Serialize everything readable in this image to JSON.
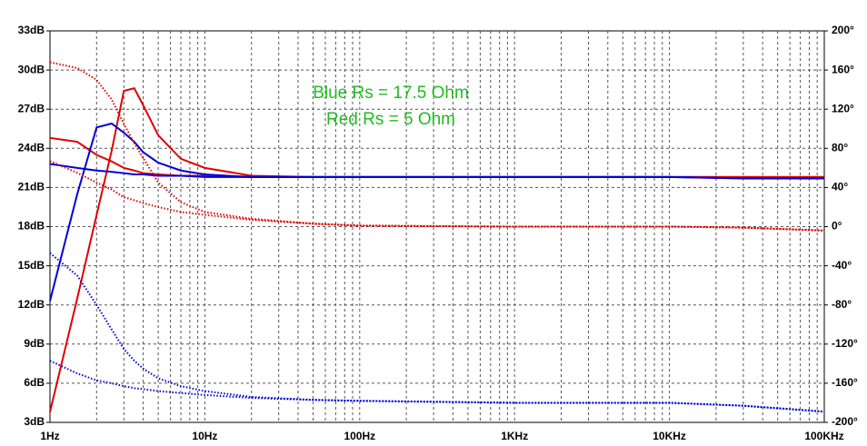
{
  "chart_data": {
    "type": "line",
    "log_x": true,
    "grid": true,
    "minor_grid": true,
    "annotations": [
      "Blue Rs = 17.5 Ohm",
      "Red Rs = 5 Ohm"
    ],
    "annotation_color": "#22bb22",
    "x": [
      1,
      1.5,
      2,
      2.5,
      3,
      3.5,
      4,
      5,
      7,
      10,
      20,
      50,
      100,
      1000,
      10000,
      30000,
      100000
    ],
    "xlim": [
      1,
      100000
    ],
    "xticks": [
      {
        "value": 1,
        "label": "1Hz"
      },
      {
        "value": 10,
        "label": "10Hz"
      },
      {
        "value": 100,
        "label": "100Hz"
      },
      {
        "value": 1000,
        "label": "1KHz"
      },
      {
        "value": 10000,
        "label": "10KHz"
      },
      {
        "value": 100000,
        "label": "100KHz"
      }
    ],
    "ylim": [
      3,
      33
    ],
    "yticks": [
      {
        "value": 3,
        "label": "3dB"
      },
      {
        "value": 6,
        "label": "6dB"
      },
      {
        "value": 9,
        "label": "9dB"
      },
      {
        "value": 12,
        "label": "12dB"
      },
      {
        "value": 15,
        "label": "15dB"
      },
      {
        "value": 18,
        "label": "18dB"
      },
      {
        "value": 21,
        "label": "21dB"
      },
      {
        "value": 24,
        "label": "24dB"
      },
      {
        "value": 27,
        "label": "27dB"
      },
      {
        "value": 30,
        "label": "30dB"
      },
      {
        "value": 33,
        "label": "33dB"
      }
    ],
    "y2lim": [
      -200,
      200
    ],
    "y2ticks": [
      {
        "value": -200,
        "label": "-200°"
      },
      {
        "value": -160,
        "label": "-160°"
      },
      {
        "value": -120,
        "label": "-120°"
      },
      {
        "value": -80,
        "label": "-80°"
      },
      {
        "value": -40,
        "label": "-40°"
      },
      {
        "value": 0,
        "label": "0°"
      },
      {
        "value": 40,
        "label": "40°"
      },
      {
        "value": 80,
        "label": "80°"
      },
      {
        "value": 120,
        "label": "120°"
      },
      {
        "value": 160,
        "label": "160°"
      },
      {
        "value": 200,
        "label": "200°"
      }
    ],
    "series": [
      {
        "color": "#e00000",
        "style": "solid",
        "values": [
          3.8,
          12.5,
          18.9,
          23.8,
          28.4,
          28.6,
          27.3,
          25,
          23.2,
          22.5,
          21.9,
          21.8,
          21.8,
          21.8,
          21.8,
          21.8,
          21.8
        ]
      },
      {
        "color": "#e00000",
        "style": "solid",
        "values": [
          24.8,
          24.5,
          23.5,
          23,
          22.5,
          22.3,
          22.1,
          22,
          21.9,
          21.9,
          21.8,
          21.8,
          21.8,
          21.8,
          21.8,
          21.8,
          21.8
        ]
      },
      {
        "color": "#0000d8",
        "style": "solid",
        "values": [
          12.3,
          20.5,
          25.6,
          25.9,
          25.2,
          24.5,
          23.7,
          22.9,
          22.3,
          22,
          21.8,
          21.8,
          21.8,
          21.8,
          21.8,
          21.7,
          21.7
        ]
      },
      {
        "color": "#0000d8",
        "style": "solid",
        "values": [
          22.8,
          22.5,
          22.3,
          22.2,
          22.1,
          22,
          22,
          21.9,
          21.9,
          21.8,
          21.8,
          21.8,
          21.8,
          21.8,
          21.8,
          21.7,
          21.7
        ]
      },
      {
        "color": "#e00000",
        "style": "dotted",
        "axis": "y2",
        "values": [
          168,
          162,
          150,
          130,
          105,
          85,
          70,
          45,
          25,
          15,
          8,
          3,
          1,
          0,
          0,
          -1,
          -4
        ]
      },
      {
        "color": "#e00000",
        "style": "dotted",
        "axis": "y2",
        "values": [
          67,
          55,
          45,
          38,
          30,
          27,
          24,
          20,
          15,
          12,
          7,
          3,
          1,
          0,
          0,
          -1,
          -4
        ]
      },
      {
        "color": "#0000d8",
        "style": "dotted",
        "axis": "y2",
        "values": [
          -27,
          -50,
          -80,
          -105,
          -125,
          -137,
          -145,
          -155,
          -163,
          -168,
          -174,
          -177,
          -178,
          -180,
          -180,
          -183,
          -189
        ]
      },
      {
        "color": "#0000d8",
        "style": "dotted",
        "axis": "y2",
        "values": [
          -137,
          -150,
          -157,
          -160,
          -163,
          -165,
          -166,
          -168,
          -170,
          -172,
          -175,
          -177,
          -178,
          -180,
          -180,
          -183,
          -189
        ]
      }
    ]
  }
}
